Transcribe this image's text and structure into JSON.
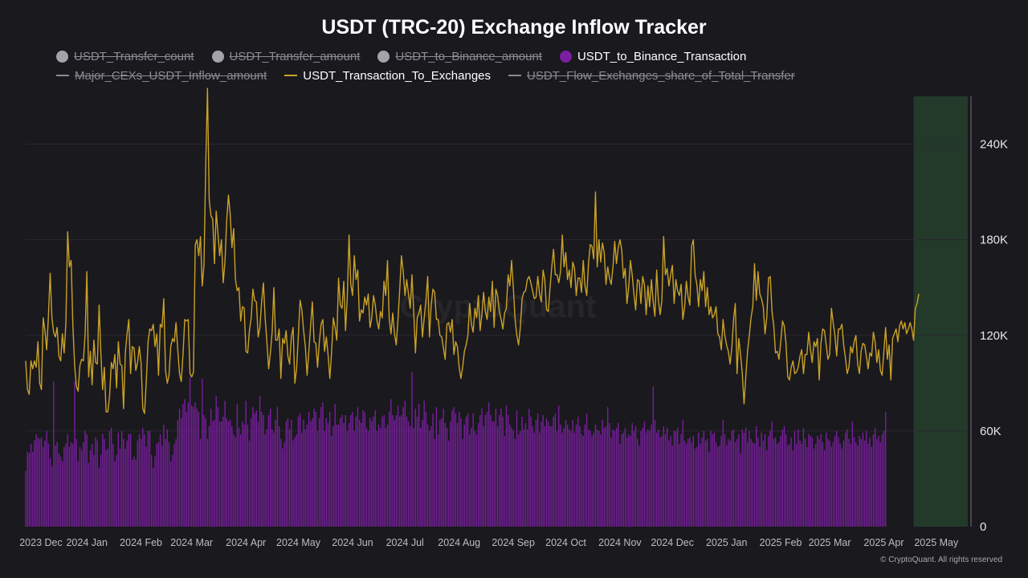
{
  "title": "USDT (TRC-20) Exchange Inflow Tracker",
  "copyright": "© CryptoQuant. All rights reserved",
  "watermark": "CryptoQuant",
  "legend": [
    {
      "label": "USDT_Transfer_count",
      "marker": "dot",
      "color": "#a5a3a9",
      "active": false
    },
    {
      "label": "USDT_Transfer_amount",
      "marker": "dot",
      "color": "#a5a3a9",
      "active": false
    },
    {
      "label": "USDT_to_Binance_amount",
      "marker": "dot",
      "color": "#a5a3a9",
      "active": false
    },
    {
      "label": "USDT_to_Binance_Transaction",
      "marker": "dot",
      "color": "#7b1fa2",
      "active": true
    },
    {
      "label": "Major_CEXs_USDT_Inflow_amount",
      "marker": "line",
      "color": "#8d8b92",
      "active": false
    },
    {
      "label": "USDT_Transaction_To_Exchanges",
      "marker": "line",
      "color": "#c9a227",
      "active": true
    },
    {
      "label": "USDT_Flow_Exchanges_share_of_Total_Transfer",
      "marker": "line",
      "color": "#8d8b92",
      "active": false
    }
  ],
  "chart_data": {
    "type": "bar+line",
    "x_axis_labels": [
      "2023 Dec",
      "2024 Jan",
      "2024 Feb",
      "2024 Mar",
      "2024 Apr",
      "2024 May",
      "2024 Jun",
      "2024 Jul",
      "2024 Aug",
      "2024 Sep",
      "2024 Oct",
      "2024 Nov",
      "2024 Dec",
      "2025 Jan",
      "2025 Feb",
      "2025 Mar",
      "2025 Apr",
      "2025 May"
    ],
    "y_axis": {
      "position": "right",
      "ticks": [
        0,
        60000,
        120000,
        180000,
        240000
      ],
      "tick_labels": [
        "0",
        "60K",
        "120K",
        "180K",
        "240K"
      ],
      "range": [
        0,
        270000
      ]
    },
    "highlight_region": {
      "from": "2025-04-18",
      "to": "2025-05-19",
      "color": "#233a2b"
    },
    "grid": true,
    "series": [
      {
        "name": "USDT_to_Binance_Transaction",
        "kind": "bar",
        "color": "#7b1fa2",
        "x_start": "2023-11-27",
        "x_step_days": 1,
        "values": [
          35000,
          47000,
          46000,
          52000,
          47000,
          54000,
          58000,
          56000,
          55000,
          56000,
          50000,
          54000,
          60000,
          52000,
          43000,
          38000,
          91000,
          51000,
          53000,
          46000,
          44000,
          41000,
          50000,
          52000,
          58000,
          50000,
          53000,
          52000,
          91000,
          55000,
          41000,
          50000,
          48000,
          53000,
          60000,
          58000,
          40000,
          48000,
          52000,
          45000,
          56000,
          54000,
          37000,
          45000,
          58000,
          55000,
          48000,
          49000,
          60000,
          62000,
          52000,
          41000,
          45000,
          59000,
          49000,
          60000,
          55000,
          49000,
          54000,
          58000,
          58000,
          42000,
          44000,
          42000,
          54000,
          58000,
          55000,
          62000,
          58000,
          50000,
          60000,
          60000,
          45000,
          37000,
          44000,
          52000,
          53000,
          58000,
          51000,
          64000,
          55000,
          61000,
          53000,
          41000,
          45000,
          52000,
          55000,
          67000,
          74000,
          68000,
          77000,
          80000,
          72000,
          78000,
          94000,
          76000,
          75000,
          78000,
          74000,
          72000,
          55000,
          93000,
          70000,
          68000,
          55000,
          63000,
          74000,
          66000,
          67000,
          82000,
          75000,
          66000,
          66000,
          69000,
          79000,
          68000,
          66000,
          67000,
          63000,
          58000,
          56000,
          77000,
          62000,
          58000,
          66000,
          64000,
          79000,
          64000,
          54000,
          68000,
          75000,
          71000,
          73000,
          66000,
          82000,
          72000,
          70000,
          58000,
          61000,
          70000,
          74000,
          61000,
          59000,
          67000,
          75000,
          63000,
          55000,
          49000,
          53000,
          66000,
          68000,
          61000,
          67000,
          54000,
          56000,
          58000,
          69000,
          71000,
          59000,
          67000,
          61000,
          64000,
          72000,
          66000,
          68000,
          74000,
          72000,
          60000,
          68000,
          75000,
          78000,
          60000,
          68000,
          65000,
          72000,
          57000,
          63000,
          77000,
          64000,
          64000,
          68000,
          70000,
          65000,
          70000,
          60000,
          65000,
          70000,
          72000,
          60000,
          69000,
          75000,
          67000,
          65000,
          73000,
          72000,
          62000,
          60000,
          68000,
          66000,
          69000,
          73000,
          60000,
          64000,
          62000,
          69000,
          70000,
          62000,
          64000,
          72000,
          80000,
          70000,
          67000,
          70000,
          76000,
          69000,
          70000,
          75000,
          79000,
          69000,
          66000,
          63000,
          97000,
          62000,
          74000,
          69000,
          77000,
          62000,
          67000,
          79000,
          72000,
          64000,
          60000,
          63000,
          71000,
          55000,
          75000,
          58000,
          67000,
          68000,
          74000,
          65000,
          62000,
          54000,
          66000,
          73000,
          75000,
          71000,
          65000,
          72000,
          68000,
          55000,
          64000,
          69000,
          71000,
          58000,
          62000,
          71000,
          60000,
          58000,
          65000,
          70000,
          74000,
          63000,
          70000,
          72000,
          78000,
          70000,
          66000,
          66000,
          74000,
          63000,
          70000,
          74000,
          69000,
          57000,
          76000,
          70000,
          64000,
          62000,
          60000,
          55000,
          73000,
          58000,
          60000,
          69000,
          61000,
          65000,
          61000,
          74000,
          69000,
          63000,
          59000,
          67000,
          71000,
          59000,
          66000,
          70000,
          63000,
          68000,
          66000,
          63000,
          63000,
          69000,
          71000,
          60000,
          76000,
          64000,
          59000,
          62000,
          67000,
          64000,
          61000,
          60000,
          67000,
          59000,
          64000,
          69000,
          63000,
          58000,
          57000,
          64000,
          71000,
          61000,
          60000,
          57000,
          59000,
          64000,
          61000,
          60000,
          58000,
          67000,
          62000,
          63000,
          75000,
          65000,
          56000,
          61000,
          60000,
          62000,
          65000,
          52000,
          58000,
          59000,
          62000,
          56000,
          58000,
          57000,
          65000,
          60000,
          63000,
          55000,
          51000,
          60000,
          62000,
          66000,
          59000,
          61000,
          60000,
          64000,
          88000,
          67000,
          59000,
          61000,
          56000,
          57000,
          63000,
          58000,
          62000,
          54000,
          57000,
          51000,
          60000,
          60000,
          62000,
          52000,
          58000,
          67000,
          54000,
          52000,
          55000,
          56000,
          53000,
          57000,
          49000,
          50000,
          59000,
          52000,
          56000,
          60000,
          54000,
          55000,
          47000,
          60000,
          58000,
          59000,
          53000,
          50000,
          51000,
          57000,
          67000,
          58000,
          51000,
          55000,
          54000,
          60000,
          61000,
          53000,
          55000,
          58000,
          46000,
          61000,
          59000,
          62000,
          53000,
          60000,
          55000,
          53000,
          52000,
          63000,
          56000,
          50000,
          59000,
          54000,
          58000,
          48000,
          57000,
          60000,
          66000,
          55000,
          56000,
          52000,
          53000,
          57000,
          61000,
          63000,
          58000,
          51000,
          52000,
          56000,
          48000,
          60000,
          52000,
          61000,
          54000,
          52000,
          62000,
          55000,
          50000,
          58000,
          57000,
          56000,
          49000,
          52000,
          57000,
          55000,
          58000,
          53000,
          48000,
          59000,
          55000,
          54000,
          50000,
          53000,
          57000,
          60000,
          56000,
          52000,
          49000,
          54000,
          59000,
          61000,
          55000,
          52000,
          66000,
          56000,
          53000,
          51000,
          57000,
          55000,
          59000,
          54000,
          60000,
          52000,
          56000,
          50000,
          58000,
          62000,
          55000,
          57000,
          53000,
          58000,
          60000,
          72000
        ]
      },
      {
        "name": "USDT_Transaction_To_Exchanges",
        "kind": "line",
        "color": "#c9a227",
        "x_start": "2023-11-27",
        "x_step_days": 1,
        "values": [
          104000,
          86000,
          83000,
          104000,
          99000,
          104000,
          100000,
          116000,
          90000,
          86000,
          131000,
          123000,
          111000,
          132000,
          159000,
          131000,
          122000,
          119000,
          125000,
          107000,
          104000,
          121000,
          109000,
          128000,
          185000,
          163000,
          167000,
          126000,
          101000,
          88000,
          85000,
          101000,
          105000,
          104000,
          121000,
          160000,
          94000,
          110000,
          89000,
          117000,
          103000,
          102000,
          139000,
          109000,
          86000,
          100000,
          72000,
          72000,
          82000,
          103000,
          99000,
          108000,
          87000,
          116000,
          102000,
          101000,
          74000,
          109000,
          121000,
          130000,
          96000,
          113000,
          112000,
          98000,
          103000,
          113000,
          103000,
          74000,
          71000,
          91000,
          116000,
          124000,
          123000,
          127000,
          113000,
          121000,
          95000,
          127000,
          125000,
          143000,
          98000,
          90000,
          95000,
          113000,
          118000,
          116000,
          128000,
          111000,
          96000,
          91000,
          108000,
          130000,
          129000,
          130000,
          96000,
          94000,
          97000,
          177000,
          180000,
          170000,
          182000,
          151000,
          164000,
          226000,
          275000,
          205000,
          195000,
          193000,
          165000,
          198000,
          184000,
          170000,
          180000,
          153000,
          166000,
          192000,
          208000,
          196000,
          175000,
          187000,
          155000,
          148000,
          150000,
          129000,
          138000,
          137000,
          110000,
          109000,
          123000,
          131000,
          149000,
          142000,
          141000,
          119000,
          125000,
          141000,
          153000,
          131000,
          116000,
          99000,
          109000,
          122000,
          150000,
          117000,
          117000,
          124000,
          93000,
          118000,
          115000,
          123000,
          107000,
          102000,
          119000,
          125000,
          90000,
          99000,
          120000,
          142000,
          136000,
          123000,
          113000,
          95000,
          110000,
          126000,
          141000,
          116000,
          115000,
          100000,
          116000,
          127000,
          130000,
          110000,
          119000,
          108000,
          93000,
          109000,
          131000,
          125000,
          117000,
          156000,
          139000,
          137000,
          154000,
          123000,
          144000,
          183000,
          152000,
          145000,
          170000,
          155000,
          161000,
          129000,
          136000,
          134000,
          144000,
          139000,
          146000,
          125000,
          131000,
          145000,
          139000,
          129000,
          124000,
          135000,
          131000,
          154000,
          145000,
          167000,
          130000,
          121000,
          134000,
          121000,
          114000,
          130000,
          149000,
          170000,
          160000,
          145000,
          155000,
          146000,
          137000,
          158000,
          135000,
          109000,
          131000,
          134000,
          139000,
          119000,
          131000,
          142000,
          157000,
          119000,
          139000,
          149000,
          147000,
          130000,
          130000,
          120000,
          119000,
          112000,
          105000,
          127000,
          128000,
          122000,
          130000,
          108000,
          116000,
          113000,
          100000,
          93000,
          100000,
          110000,
          114000,
          120000,
          140000,
          127000,
          122000,
          137000,
          131000,
          145000,
          123000,
          133000,
          147000,
          135000,
          130000,
          144000,
          135000,
          154000,
          125000,
          149000,
          145000,
          135000,
          130000,
          124000,
          134000,
          137000,
          158000,
          151000,
          167000,
          150000,
          130000,
          120000,
          114000,
          125000,
          143000,
          147000,
          148000,
          155000,
          157000,
          153000,
          148000,
          143000,
          144000,
          157000,
          146000,
          141000,
          161000,
          155000,
          136000,
          135000,
          150000,
          163000,
          174000,
          158000,
          158000,
          153000,
          160000,
          183000,
          163000,
          172000,
          155000,
          161000,
          150000,
          166000,
          162000,
          145000,
          156000,
          156000,
          147000,
          167000,
          151000,
          145000,
          165000,
          177000,
          176000,
          168000,
          210000,
          163000,
          180000,
          166000,
          178000,
          172000,
          152000,
          163000,
          156000,
          152000,
          163000,
          179000,
          165000,
          175000,
          180000,
          174000,
          156000,
          162000,
          140000,
          150000,
          167000,
          158000,
          146000,
          136000,
          155000,
          154000,
          140000,
          157000,
          152000,
          133000,
          151000,
          138000,
          155000,
          141000,
          132000,
          161000,
          142000,
          133000,
          142000,
          182000,
          158000,
          162000,
          151000,
          158000,
          164000,
          140000,
          155000,
          148000,
          145000,
          152000,
          130000,
          138000,
          154000,
          144000,
          139000,
          176000,
          180000,
          158000,
          152000,
          138000,
          155000,
          148000,
          160000,
          138000,
          150000,
          133000,
          138000,
          131000,
          133000,
          138000,
          121000,
          119000,
          111000,
          130000,
          120000,
          114000,
          110000,
          102000,
          112000,
          130000,
          140000,
          96000,
          118000,
          108000,
          96000,
          77000,
          94000,
          110000,
          120000,
          131000,
          138000,
          165000,
          142000,
          160000,
          146000,
          143000,
          138000,
          121000,
          131000,
          156000,
          157000,
          135000,
          126000,
          109000,
          110000,
          105000,
          116000,
          129000,
          126000,
          115000,
          94000,
          92000,
          100000,
          104000,
          96000,
          97000,
          100000,
          107000,
          111000,
          96000,
          108000,
          108000,
          122000,
          111000,
          103000,
          116000,
          113000,
          118000,
          92000,
          115000,
          124000,
          123000,
          114000,
          105000,
          108000,
          137000,
          128000,
          120000,
          107000,
          124000,
          124000,
          127000,
          114000,
          106000,
          96000,
          100000,
          113000,
          109000,
          116000,
          120000,
          102000,
          96000,
          110000,
          115000,
          114000,
          107000,
          99000,
          109000,
          107000,
          122000,
          116000,
          103000,
          111000,
          98000,
          95000,
          110000,
          125000,
          105000,
          114000,
          92000,
          118000,
          121000,
          124000,
          116000,
          126000,
          129000,
          124000,
          128000,
          121000,
          124000,
          128000,
          124000,
          117000,
          137000,
          140000,
          146000
        ]
      }
    ]
  }
}
